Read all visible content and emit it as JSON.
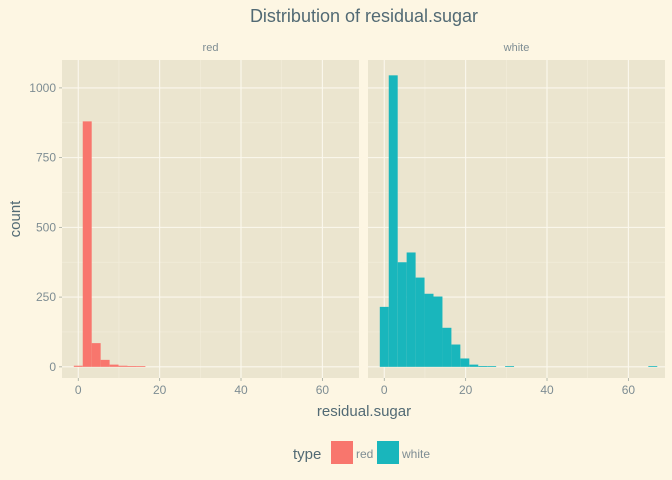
{
  "chart_data": {
    "type": "bar",
    "title": "Distribution of  residual.sugar",
    "xlabel": "residual.sugar",
    "ylabel": "count",
    "xlim": [
      -4,
      69
    ],
    "ylim": [
      -40,
      1100
    ],
    "bin_width": 2.2,
    "x_ticks": [
      0,
      20,
      40,
      60
    ],
    "y_ticks": [
      0,
      250,
      500,
      750,
      1000
    ],
    "grid": true,
    "legend": {
      "title": "type",
      "placement": "bottom",
      "entries": [
        {
          "label": "red",
          "color": "#f8766d"
        },
        {
          "label": "white",
          "color": "#19b6bc"
        }
      ]
    },
    "panels": [
      {
        "strip": "red",
        "color": "#f8766d",
        "bins": [
          {
            "x": 0,
            "count": 4
          },
          {
            "x": 2.2,
            "count": 880
          },
          {
            "x": 4.4,
            "count": 85
          },
          {
            "x": 6.6,
            "count": 25
          },
          {
            "x": 8.8,
            "count": 8
          },
          {
            "x": 11,
            "count": 4
          },
          {
            "x": 13.2,
            "count": 3
          },
          {
            "x": 15.4,
            "count": 2
          }
        ]
      },
      {
        "strip": "white",
        "color": "#19b6bc",
        "bins": [
          {
            "x": 0,
            "count": 215
          },
          {
            "x": 2.2,
            "count": 1045
          },
          {
            "x": 4.4,
            "count": 375
          },
          {
            "x": 6.6,
            "count": 410
          },
          {
            "x": 8.8,
            "count": 320
          },
          {
            "x": 11,
            "count": 262
          },
          {
            "x": 13.2,
            "count": 252
          },
          {
            "x": 15.4,
            "count": 140
          },
          {
            "x": 17.6,
            "count": 80
          },
          {
            "x": 19.8,
            "count": 30
          },
          {
            "x": 22,
            "count": 8
          },
          {
            "x": 24.2,
            "count": 3
          },
          {
            "x": 26.4,
            "count": 2
          },
          {
            "x": 30.8,
            "count": 1
          },
          {
            "x": 66,
            "count": 1
          }
        ]
      }
    ]
  }
}
